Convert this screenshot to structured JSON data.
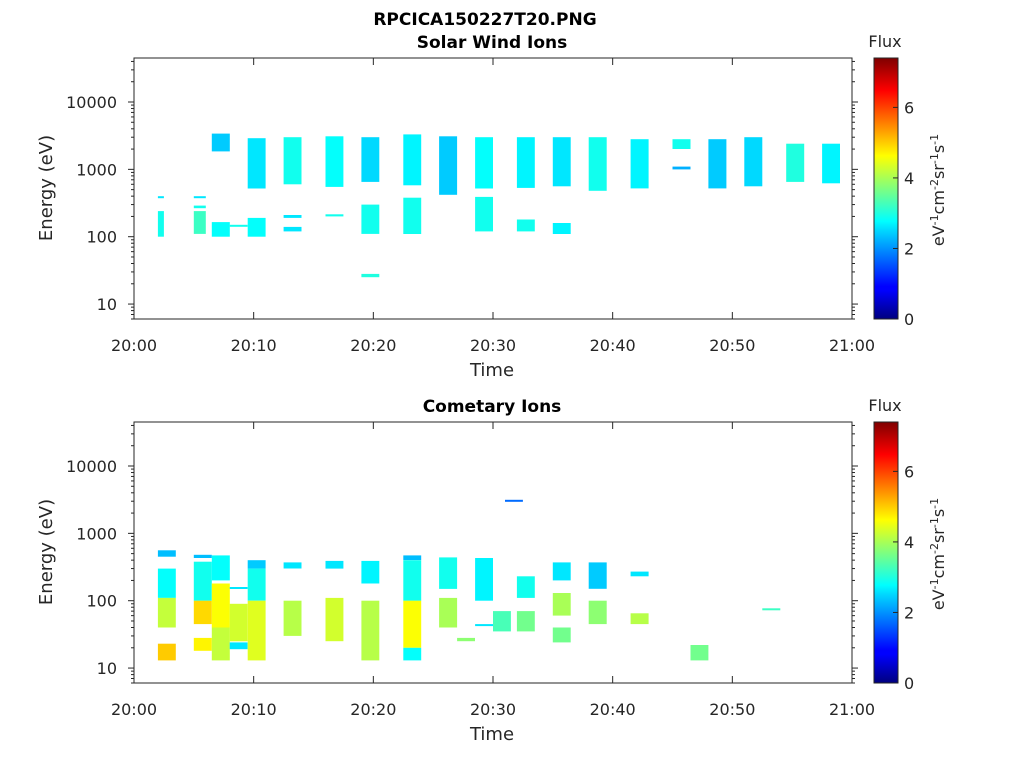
{
  "figure": {
    "suptitle": "RPCICA150227T20.PNG"
  },
  "chart_data": [
    {
      "type": "heatmap",
      "title": "Solar Wind Ions",
      "xlabel": "Time",
      "ylabel": "Energy (eV)",
      "x_ticks": [
        "20:00",
        "20:10",
        "20:20",
        "20:30",
        "20:40",
        "20:50",
        "21:00"
      ],
      "x_range_min": [
        0,
        60
      ],
      "y_scale": "log",
      "y_ticks": [
        10,
        100,
        1000,
        10000
      ],
      "y_range": [
        6,
        45000
      ],
      "grid": false,
      "colorbar": {
        "label": "Flux",
        "unit": "eV-1cm-2sr-1s-1",
        "ticks": [
          0,
          2,
          4,
          6
        ],
        "range": [
          0,
          7.4
        ],
        "colormap": "jet"
      },
      "cells": [
        [
          2,
          2.5,
          390,
          400,
          2.6
        ],
        [
          2,
          2.5,
          100,
          240,
          2.9
        ],
        [
          5,
          6,
          380,
          400,
          2.6
        ],
        [
          5,
          6,
          265,
          290,
          2.9
        ],
        [
          5,
          6,
          110,
          240,
          3.2
        ],
        [
          6.5,
          8,
          1850,
          3400,
          2.4
        ],
        [
          6.5,
          8,
          100,
          165,
          2.8
        ],
        [
          8,
          9.5,
          140,
          150,
          2.9
        ],
        [
          9.5,
          11,
          520,
          2900,
          2.6
        ],
        [
          9.5,
          11,
          100,
          190,
          2.8
        ],
        [
          12.5,
          14,
          600,
          3000,
          2.9
        ],
        [
          12.5,
          14,
          190,
          210,
          2.6
        ],
        [
          12.5,
          14,
          120,
          140,
          2.6
        ],
        [
          16,
          17.5,
          550,
          3100,
          2.8
        ],
        [
          16,
          17.5,
          200,
          215,
          2.9
        ],
        [
          19,
          20.5,
          650,
          3000,
          2.5
        ],
        [
          19,
          20.5,
          110,
          300,
          2.9
        ],
        [
          19,
          20.5,
          25,
          28,
          3.0
        ],
        [
          22.5,
          24,
          580,
          3300,
          2.7
        ],
        [
          22.5,
          24,
          110,
          380,
          2.9
        ],
        [
          25.5,
          27,
          420,
          3100,
          2.4
        ],
        [
          28.5,
          30,
          520,
          3000,
          2.8
        ],
        [
          28.5,
          30,
          120,
          390,
          2.9
        ],
        [
          32,
          33.5,
          530,
          3000,
          2.7
        ],
        [
          32,
          33.5,
          120,
          180,
          2.9
        ],
        [
          35,
          36.5,
          560,
          3000,
          2.6
        ],
        [
          35,
          36.5,
          110,
          160,
          2.7
        ],
        [
          38,
          39.5,
          480,
          3000,
          2.9
        ],
        [
          41.5,
          43,
          520,
          2800,
          2.7
        ],
        [
          45,
          46.5,
          2000,
          2800,
          2.9
        ],
        [
          45,
          46.5,
          1000,
          1100,
          2.2
        ],
        [
          48,
          49.5,
          520,
          2800,
          2.4
        ],
        [
          51,
          52.5,
          560,
          3000,
          2.5
        ],
        [
          54.5,
          56,
          650,
          2400,
          3.0
        ],
        [
          57.5,
          59,
          620,
          2400,
          2.7
        ]
      ]
    },
    {
      "type": "heatmap",
      "title": "Cometary Ions",
      "xlabel": "Time",
      "ylabel": "Energy (eV)",
      "x_ticks": [
        "20:00",
        "20:10",
        "20:20",
        "20:30",
        "20:40",
        "20:50",
        "21:00"
      ],
      "x_range_min": [
        0,
        60
      ],
      "y_scale": "log",
      "y_ticks": [
        10,
        100,
        1000,
        10000
      ],
      "y_range": [
        6,
        45000
      ],
      "grid": false,
      "colorbar": {
        "label": "Flux",
        "unit": "eV-1cm-2sr-1s-1",
        "ticks": [
          0,
          2,
          4,
          6
        ],
        "range": [
          0,
          7.4
        ],
        "colormap": "jet"
      },
      "cells": [
        [
          2,
          3.5,
          450,
          560,
          2.3
        ],
        [
          2,
          3.5,
          110,
          300,
          2.8
        ],
        [
          2,
          3.5,
          40,
          110,
          4.2
        ],
        [
          2,
          3.5,
          13,
          23,
          5.0
        ],
        [
          5,
          6.5,
          430,
          480,
          2.3
        ],
        [
          5,
          6.5,
          100,
          380,
          2.9
        ],
        [
          5,
          6.5,
          45,
          100,
          4.9
        ],
        [
          5,
          6.5,
          18,
          28,
          4.7
        ],
        [
          6.5,
          8,
          200,
          470,
          2.8
        ],
        [
          6.5,
          8,
          40,
          180,
          4.6
        ],
        [
          6.5,
          8,
          13,
          40,
          4.2
        ],
        [
          8,
          9.5,
          150,
          160,
          2.6
        ],
        [
          8,
          9.5,
          25,
          90,
          4.3
        ],
        [
          8,
          9.5,
          19,
          24,
          2.6
        ],
        [
          9.5,
          11,
          300,
          400,
          2.4
        ],
        [
          9.5,
          11,
          100,
          300,
          2.9
        ],
        [
          9.5,
          11,
          13,
          100,
          4.4
        ],
        [
          12.5,
          14,
          300,
          370,
          2.6
        ],
        [
          12.5,
          14,
          30,
          100,
          4.1
        ],
        [
          16,
          17.5,
          300,
          390,
          2.6
        ],
        [
          16,
          17.5,
          25,
          110,
          4.3
        ],
        [
          19,
          20.5,
          180,
          390,
          2.7
        ],
        [
          19,
          20.5,
          13,
          100,
          4.1
        ],
        [
          22.5,
          24,
          400,
          470,
          2.3
        ],
        [
          22.5,
          24,
          100,
          400,
          2.9
        ],
        [
          22.5,
          24,
          20,
          100,
          4.6
        ],
        [
          22.5,
          24,
          13,
          20,
          2.8
        ],
        [
          25.5,
          27,
          150,
          440,
          2.9
        ],
        [
          25.5,
          27,
          40,
          110,
          4.0
        ],
        [
          27,
          28.5,
          25,
          28,
          3.8
        ],
        [
          28.5,
          30,
          100,
          430,
          2.7
        ],
        [
          28.5,
          30,
          42,
          45,
          2.6
        ],
        [
          30,
          31.5,
          35,
          70,
          3.3
        ],
        [
          31,
          32.5,
          2950,
          3150,
          1.7
        ],
        [
          32,
          33.5,
          110,
          230,
          2.9
        ],
        [
          32,
          33.5,
          35,
          70,
          3.6
        ],
        [
          35,
          36.5,
          200,
          370,
          2.6
        ],
        [
          35,
          36.5,
          60,
          130,
          4.0
        ],
        [
          35,
          36.5,
          24,
          40,
          3.6
        ],
        [
          38,
          39.5,
          150,
          370,
          2.4
        ],
        [
          38,
          39.5,
          45,
          100,
          3.8
        ],
        [
          41.5,
          43,
          230,
          270,
          2.6
        ],
        [
          41.5,
          43,
          45,
          65,
          4.1
        ],
        [
          46.5,
          48,
          13,
          22,
          3.6
        ],
        [
          52.5,
          54,
          74,
          77,
          3.2
        ]
      ]
    }
  ]
}
